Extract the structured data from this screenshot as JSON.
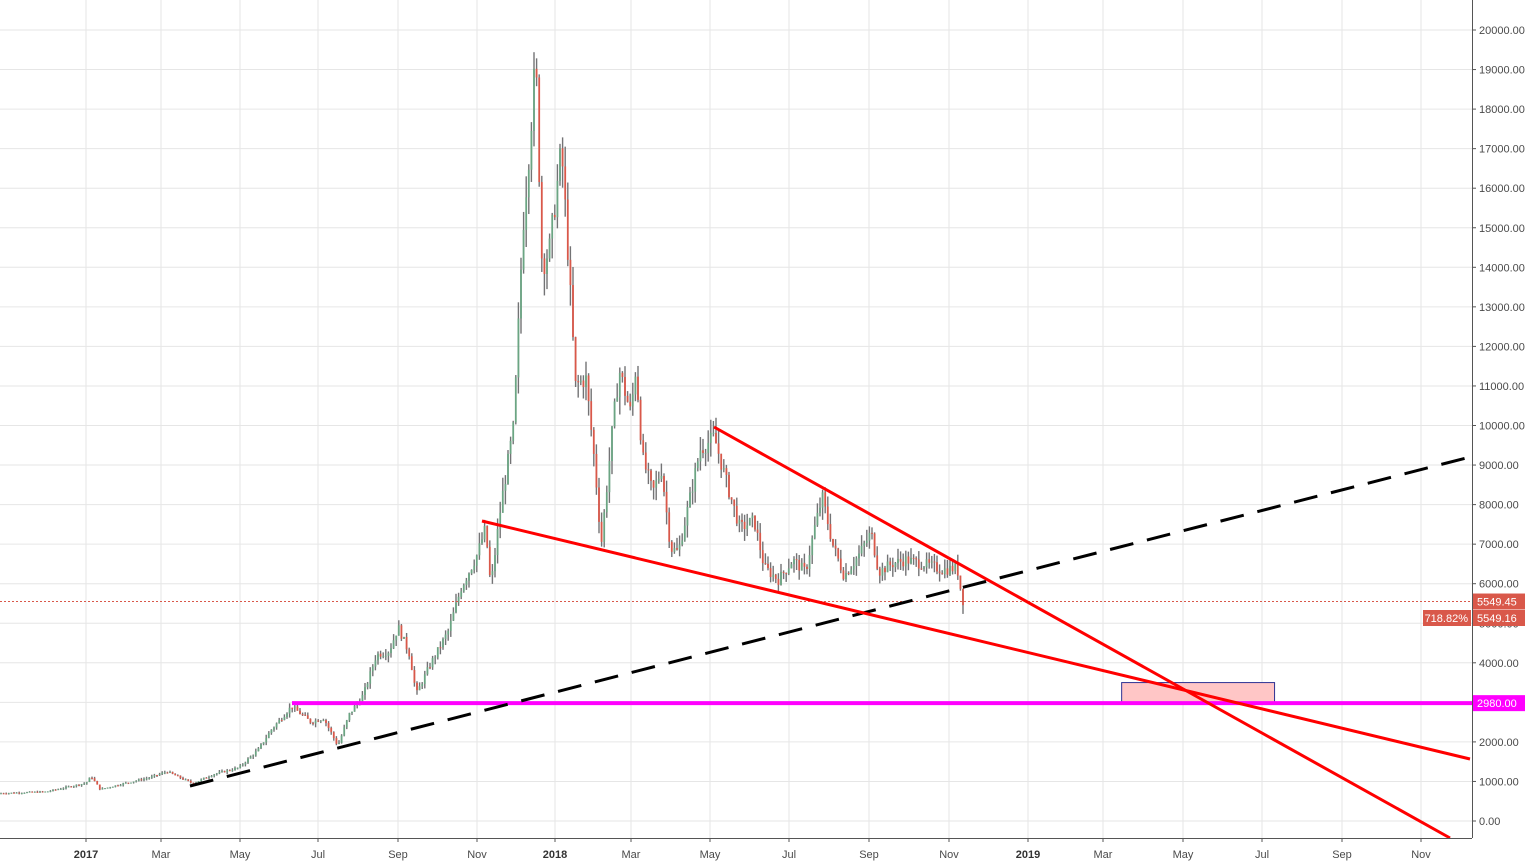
{
  "chart_data": {
    "type": "candlestick",
    "title": "",
    "xlabel": "",
    "ylabel": "",
    "ylim": [
      -400,
      20800
    ],
    "grid": true,
    "y_ticks": [
      "0.00",
      "1000.00",
      "2000.00",
      "3000.00",
      "4000.00",
      "5000.00",
      "6000.00",
      "7000.00",
      "8000.00",
      "9000.00",
      "10000.00",
      "11000.00",
      "12000.00",
      "13000.00",
      "14000.00",
      "15000.00",
      "16000.00",
      "17000.00",
      "18000.00",
      "19000.00",
      "20000.00"
    ],
    "x_ticks": [
      {
        "label": "2017",
        "year": true
      },
      {
        "label": "Mar"
      },
      {
        "label": "May"
      },
      {
        "label": "Jul"
      },
      {
        "label": "Sep"
      },
      {
        "label": "Nov"
      },
      {
        "label": "2018",
        "year": true
      },
      {
        "label": "Mar"
      },
      {
        "label": "May"
      },
      {
        "label": "Jul"
      },
      {
        "label": "Sep"
      },
      {
        "label": "Nov"
      },
      {
        "label": "2019",
        "year": true
      },
      {
        "label": "Mar"
      },
      {
        "label": "May"
      },
      {
        "label": "Jul"
      },
      {
        "label": "Sep"
      },
      {
        "label": "Nov"
      }
    ],
    "price_path": [
      [
        "2016-11",
        700
      ],
      [
        "2016-12",
        740
      ],
      [
        "2017-01-01",
        960
      ],
      [
        "2017-01-05",
        1130
      ],
      [
        "2017-01-12",
        800
      ],
      [
        "2017-02-01",
        960
      ],
      [
        "2017-02-20",
        1100
      ],
      [
        "2017-03-05",
        1250
      ],
      [
        "2017-03-15",
        1100
      ],
      [
        "2017-03-25",
        950
      ],
      [
        "2017-04-10",
        1180
      ],
      [
        "2017-04-30",
        1350
      ],
      [
        "2017-05-15",
        1800
      ],
      [
        "2017-05-25",
        2300
      ],
      [
        "2017-06-10",
        2900
      ],
      [
        "2017-06-25",
        2500
      ],
      [
        "2017-07-05",
        2600
      ],
      [
        "2017-07-16",
        1900
      ],
      [
        "2017-07-25",
        2700
      ],
      [
        "2017-08-05",
        3200
      ],
      [
        "2017-08-15",
        4200
      ],
      [
        "2017-08-25",
        4300
      ],
      [
        "2017-09-01",
        4900
      ],
      [
        "2017-09-10",
        4200
      ],
      [
        "2017-09-15",
        3200
      ],
      [
        "2017-09-25",
        3900
      ],
      [
        "2017-10-10",
        4800
      ],
      [
        "2017-10-20",
        5900
      ],
      [
        "2017-11-01",
        6700
      ],
      [
        "2017-11-08",
        7400
      ],
      [
        "2017-11-12",
        5900
      ],
      [
        "2017-11-20",
        8000
      ],
      [
        "2017-11-30",
        10000
      ],
      [
        "2017-12-07",
        15000
      ],
      [
        "2017-12-12",
        17000
      ],
      [
        "2017-12-17",
        19300
      ],
      [
        "2017-12-22",
        14000
      ],
      [
        "2017-12-28",
        14500
      ],
      [
        "2018-01-06",
        17000
      ],
      [
        "2018-01-10",
        15000
      ],
      [
        "2018-01-17",
        11000
      ],
      [
        "2018-01-25",
        11200
      ],
      [
        "2018-02-01",
        9000
      ],
      [
        "2018-02-06",
        7000
      ],
      [
        "2018-02-15",
        10000
      ],
      [
        "2018-02-20",
        11400
      ],
      [
        "2018-03-01",
        10300
      ],
      [
        "2018-03-05",
        11500
      ],
      [
        "2018-03-10",
        9200
      ],
      [
        "2018-03-18",
        8300
      ],
      [
        "2018-03-25",
        8900
      ],
      [
        "2018-04-01",
        6900
      ],
      [
        "2018-04-07",
        6800
      ],
      [
        "2018-04-15",
        8000
      ],
      [
        "2018-04-24",
        9400
      ],
      [
        "2018-05-05",
        9700
      ],
      [
        "2018-05-15",
        8500
      ],
      [
        "2018-05-25",
        7400
      ],
      [
        "2018-06-05",
        7600
      ],
      [
        "2018-06-13",
        6400
      ],
      [
        "2018-06-24",
        6100
      ],
      [
        "2018-07-05",
        6600
      ],
      [
        "2018-07-15",
        6300
      ],
      [
        "2018-07-22",
        7400
      ],
      [
        "2018-07-28",
        8200
      ],
      [
        "2018-08-05",
        7000
      ],
      [
        "2018-08-14",
        6200
      ],
      [
        "2018-08-25",
        6700
      ],
      [
        "2018-09-04",
        7300
      ],
      [
        "2018-09-10",
        6300
      ],
      [
        "2018-09-20",
        6500
      ],
      [
        "2018-10-01",
        6600
      ],
      [
        "2018-10-15",
        6500
      ],
      [
        "2018-10-30",
        6350
      ],
      [
        "2018-11-10",
        6400
      ],
      [
        "2018-11-14",
        5600
      ],
      [
        "2018-11-15",
        5549
      ]
    ],
    "candle_colors": {
      "up": "#6ba583",
      "down": "#d9584a",
      "wick": "#737375"
    },
    "last_price": {
      "value": "5549.45",
      "color": "#d9584a"
    },
    "last_price_2": {
      "value": "5549.16",
      "percent": "718.82%",
      "color": "#d9584a"
    },
    "drawings": {
      "support_line": {
        "price": "2980.00",
        "color": "#ff00ff",
        "type": "horizontal"
      },
      "dashed_trendline": {
        "color": "#000000",
        "style": "dashed",
        "from": [
          "2017-03-25",
          900
        ],
        "to": [
          "2019-12-15",
          9150
        ]
      },
      "upper_trendline": {
        "color": "#ff0000",
        "from": [
          "2018-05-05",
          9950
        ],
        "to": [
          "2019-11-25",
          -420
        ]
      },
      "lower_trendline": {
        "color": "#ff0000",
        "from": [
          "2017-11-08",
          7600
        ],
        "to": [
          "2019-12-15",
          1570
        ]
      },
      "target_box": {
        "fill": "#ffc6c6",
        "border": "#2e3192",
        "price_top": 3500,
        "price_bottom": 2980,
        "from": "2019-03-18",
        "to": "2019-07-15"
      }
    }
  }
}
